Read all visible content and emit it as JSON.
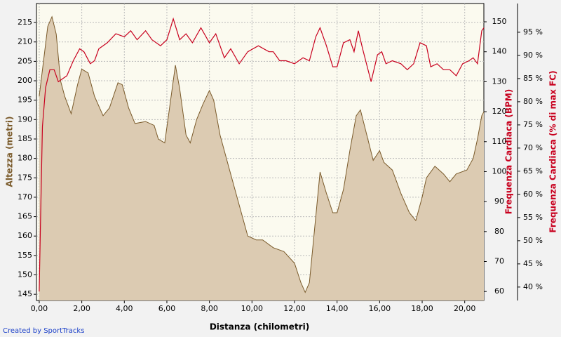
{
  "chart_data": {
    "type": "line",
    "xlabel": "Distanza (chilometri)",
    "ylabel": "Altezza (metri)",
    "y2label": "Frequenza Cardiaca (BPM)",
    "y3label": "Frequenza Cardiaca (% di max FC)",
    "credit": "Created by SportTracks",
    "xlim": [
      -0.13,
      20.9
    ],
    "xticks": [
      {
        "value": 0,
        "label": "0,00"
      },
      {
        "value": 2,
        "label": "2,00"
      },
      {
        "value": 4,
        "label": "4,00"
      },
      {
        "value": 6,
        "label": "6,00"
      },
      {
        "value": 8,
        "label": "8,00"
      },
      {
        "value": 10,
        "label": "10,00"
      },
      {
        "value": 12,
        "label": "12,00"
      },
      {
        "value": 14,
        "label": "14,00"
      },
      {
        "value": 16,
        "label": "16,00"
      },
      {
        "value": 18,
        "label": "18,00"
      },
      {
        "value": 20,
        "label": "20,00"
      }
    ],
    "ylim": [
      143.4,
      219.9
    ],
    "yticks": [
      145,
      150,
      155,
      160,
      165,
      170,
      175,
      180,
      185,
      190,
      195,
      200,
      205,
      210,
      215
    ],
    "y2lim": [
      57,
      156.1
    ],
    "y2ticks": [
      60,
      70,
      80,
      90,
      100,
      110,
      120,
      130,
      140,
      150
    ],
    "y3lim": [
      37.1,
      101.2
    ],
    "y3ticks": [
      {
        "value": 40,
        "label": "40 %"
      },
      {
        "value": 45,
        "label": "45 %"
      },
      {
        "value": 50,
        "label": "50 %"
      },
      {
        "value": 55,
        "label": "55 %"
      },
      {
        "value": 60,
        "label": "60 %"
      },
      {
        "value": 65,
        "label": "65 %"
      },
      {
        "value": 70,
        "label": "70 %"
      },
      {
        "value": 75,
        "label": "75 %"
      },
      {
        "value": 80,
        "label": "80 %"
      },
      {
        "value": 85,
        "label": "85 %"
      },
      {
        "value": 90,
        "label": "90 %"
      },
      {
        "value": 95,
        "label": "95 %"
      }
    ],
    "grid": true,
    "series": [
      {
        "kind": "area",
        "axis": "y",
        "color": "#7a5a2a",
        "fill": "#dccbb2",
        "x": [
          0.0,
          0.2,
          0.4,
          0.6,
          0.8,
          1.0,
          1.2,
          1.5,
          1.8,
          2.0,
          2.3,
          2.6,
          3.0,
          3.3,
          3.7,
          3.9,
          4.2,
          4.5,
          5.0,
          5.4,
          5.6,
          5.9,
          6.1,
          6.4,
          6.6,
          6.9,
          7.1,
          7.4,
          7.7,
          8.0,
          8.2,
          8.5,
          8.9,
          9.2,
          9.6,
          9.8,
          10.2,
          10.5,
          11.0,
          11.5,
          12.0,
          12.3,
          12.5,
          12.7,
          13.0,
          13.2,
          13.5,
          13.8,
          14.0,
          14.3,
          14.6,
          14.9,
          15.1,
          15.4,
          15.7,
          16.0,
          16.2,
          16.6,
          17.0,
          17.4,
          17.7,
          18.0,
          18.2,
          18.6,
          19.0,
          19.3,
          19.6,
          20.1,
          20.4,
          20.6,
          20.8,
          20.9
        ],
        "values": [
          196,
          205,
          214,
          216.5,
          212,
          200,
          196,
          191.5,
          199,
          203,
          202,
          196,
          191,
          193,
          199.5,
          199,
          193,
          189,
          189.5,
          188.5,
          185,
          184,
          192,
          204,
          198,
          186,
          184,
          190,
          194,
          197.5,
          195,
          186,
          178,
          172,
          164,
          160,
          159,
          159,
          157,
          156,
          153,
          148,
          145.5,
          148,
          165,
          176.5,
          171,
          166,
          166,
          172,
          182,
          191,
          192.5,
          186,
          179.5,
          182,
          179,
          177,
          171,
          166,
          164,
          170,
          175,
          178,
          176,
          174,
          176,
          177,
          180,
          185,
          191,
          192
        ]
      },
      {
        "kind": "line",
        "axis": "y2",
        "color": "#c8001e",
        "x": [
          0.0,
          0.05,
          0.15,
          0.3,
          0.5,
          0.7,
          0.9,
          1.1,
          1.3,
          1.6,
          1.9,
          2.1,
          2.4,
          2.6,
          2.8,
          3.2,
          3.6,
          4.0,
          4.3,
          4.6,
          5.0,
          5.3,
          5.7,
          6.0,
          6.3,
          6.6,
          6.9,
          7.2,
          7.6,
          8.0,
          8.3,
          8.7,
          9.0,
          9.4,
          9.8,
          10.3,
          10.8,
          11.0,
          11.3,
          11.6,
          12.0,
          12.4,
          12.7,
          13.0,
          13.2,
          13.5,
          13.8,
          14.0,
          14.3,
          14.6,
          14.8,
          15.0,
          15.2,
          15.6,
          15.9,
          16.1,
          16.3,
          16.6,
          17.0,
          17.3,
          17.6,
          17.9,
          18.2,
          18.4,
          18.7,
          19.0,
          19.3,
          19.6,
          19.9,
          20.2,
          20.4,
          20.6,
          20.8,
          20.9
        ],
        "values": [
          60,
          80,
          115,
          128,
          134,
          134,
          130,
          131,
          132,
          137,
          141,
          140,
          136,
          137,
          141,
          143,
          146,
          145,
          147,
          144,
          147,
          144,
          142,
          144,
          151,
          144,
          146,
          143,
          148,
          143,
          146,
          138,
          141,
          136,
          140,
          142,
          140,
          140,
          137,
          137,
          136,
          138,
          137,
          145,
          148,
          142,
          135,
          135,
          143,
          144,
          140,
          147,
          141,
          130,
          139,
          140,
          136,
          137,
          136,
          134,
          136,
          143,
          142,
          135,
          136,
          134,
          134,
          132,
          136,
          137,
          138,
          136,
          147,
          148
        ]
      }
    ]
  }
}
